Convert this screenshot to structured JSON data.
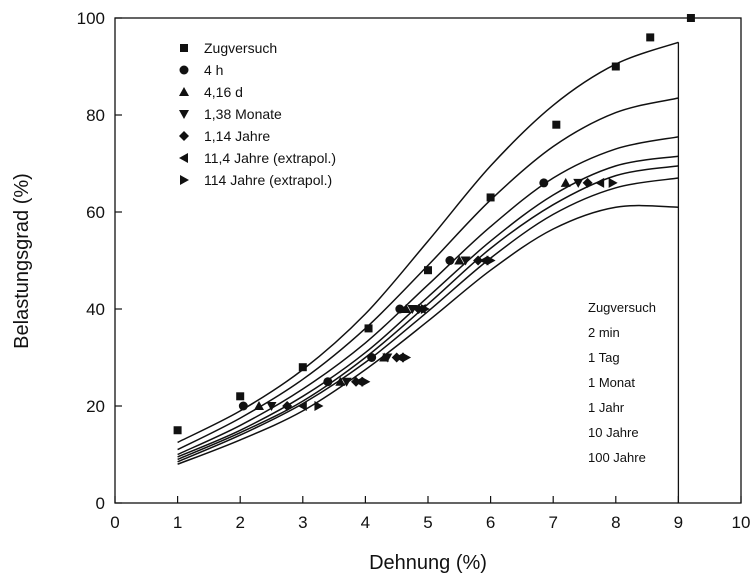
{
  "chart_data": {
    "type": "scatter",
    "xlabel": "Dehnung (%)",
    "ylabel": "Belastungsgrad (%)",
    "xlim": [
      0,
      10
    ],
    "ylim": [
      0,
      100
    ],
    "xticks": [
      0,
      1,
      2,
      3,
      4,
      5,
      6,
      7,
      8,
      9,
      10
    ],
    "yticks": [
      0,
      20,
      40,
      60,
      80,
      100
    ],
    "grid": false,
    "legend_position": "top-left",
    "series": [
      {
        "name": "Zugversuch",
        "marker": "square",
        "points": [
          [
            1.0,
            15
          ],
          [
            2.0,
            22
          ],
          [
            3.0,
            28
          ],
          [
            4.05,
            36
          ],
          [
            5.0,
            48
          ],
          [
            6.0,
            63
          ],
          [
            7.05,
            78
          ],
          [
            8.0,
            90
          ],
          [
            8.55,
            96
          ],
          [
            9.2,
            100
          ]
        ]
      },
      {
        "name": "4 h",
        "marker": "circle",
        "points": [
          [
            2.05,
            20
          ],
          [
            3.4,
            25
          ],
          [
            4.1,
            30
          ],
          [
            4.55,
            40
          ],
          [
            5.35,
            50
          ],
          [
            6.85,
            66
          ]
        ]
      },
      {
        "name": "4,16 d",
        "marker": "triangle-up",
        "points": [
          [
            2.3,
            20
          ],
          [
            3.6,
            25
          ],
          [
            4.3,
            30
          ],
          [
            4.65,
            40
          ],
          [
            5.5,
            50
          ],
          [
            7.2,
            66
          ]
        ]
      },
      {
        "name": "1,38 Monate",
        "marker": "triangle-down",
        "points": [
          [
            2.5,
            20
          ],
          [
            3.7,
            25
          ],
          [
            4.35,
            30
          ],
          [
            4.75,
            40
          ],
          [
            5.6,
            50
          ],
          [
            7.4,
            66
          ]
        ]
      },
      {
        "name": "1,14 Jahre",
        "marker": "diamond",
        "points": [
          [
            2.75,
            20
          ],
          [
            3.85,
            25
          ],
          [
            4.5,
            30
          ],
          [
            4.85,
            40
          ],
          [
            5.8,
            50
          ],
          [
            7.55,
            66
          ]
        ]
      },
      {
        "name": "11,4 Jahre (extrapol.)",
        "marker": "triangle-left",
        "points": [
          [
            3.0,
            20
          ],
          [
            3.9,
            25
          ],
          [
            4.55,
            30
          ],
          [
            4.9,
            40
          ],
          [
            5.9,
            50
          ],
          [
            7.75,
            66
          ]
        ]
      },
      {
        "name": "114 Jahre (extrapol.)",
        "marker": "triangle-right",
        "points": [
          [
            3.25,
            20
          ],
          [
            4.0,
            25
          ],
          [
            4.65,
            30
          ],
          [
            4.95,
            40
          ],
          [
            6.0,
            50
          ],
          [
            7.95,
            66
          ]
        ]
      }
    ],
    "curves": [
      {
        "name": "Zugversuch",
        "points": [
          [
            1,
            12.5
          ],
          [
            2,
            19
          ],
          [
            3,
            27.5
          ],
          [
            4,
            39
          ],
          [
            5,
            54
          ],
          [
            6,
            69.5
          ],
          [
            7,
            82
          ],
          [
            8,
            90.5
          ],
          [
            9,
            95
          ]
        ]
      },
      {
        "name": "2 min",
        "points": [
          [
            1,
            11
          ],
          [
            2,
            17.5
          ],
          [
            3,
            25.5
          ],
          [
            4,
            36
          ],
          [
            5,
            49
          ],
          [
            6,
            62.5
          ],
          [
            7,
            73.5
          ],
          [
            8,
            80.5
          ],
          [
            9,
            83.5
          ]
        ]
      },
      {
        "name": "1 Tag",
        "points": [
          [
            1,
            10
          ],
          [
            2,
            16
          ],
          [
            3,
            23.5
          ],
          [
            4,
            33
          ],
          [
            5,
            45
          ],
          [
            6,
            57
          ],
          [
            7,
            67
          ],
          [
            8,
            73
          ],
          [
            9,
            75.5
          ]
        ]
      },
      {
        "name": "1 Monat",
        "points": [
          [
            1,
            9.5
          ],
          [
            2,
            15
          ],
          [
            3,
            22
          ],
          [
            4,
            31
          ],
          [
            5,
            42.5
          ],
          [
            6,
            54
          ],
          [
            7,
            63.5
          ],
          [
            8,
            69.5
          ],
          [
            9,
            71.5
          ]
        ]
      },
      {
        "name": "1 Jahr",
        "points": [
          [
            1,
            9
          ],
          [
            2,
            14.5
          ],
          [
            3,
            21
          ],
          [
            4,
            30
          ],
          [
            5,
            41
          ],
          [
            6,
            52.5
          ],
          [
            7,
            61.5
          ],
          [
            8,
            67.5
          ],
          [
            9,
            69.5
          ]
        ]
      },
      {
        "name": "10 Jahre",
        "points": [
          [
            1,
            8.5
          ],
          [
            2,
            14
          ],
          [
            3,
            20.5
          ],
          [
            4,
            29
          ],
          [
            5,
            39.5
          ],
          [
            6,
            50.5
          ],
          [
            7,
            59.5
          ],
          [
            8,
            65
          ],
          [
            9,
            67
          ]
        ]
      },
      {
        "name": "100 Jahre",
        "points": [
          [
            1,
            8
          ],
          [
            2,
            13
          ],
          [
            3,
            19
          ],
          [
            4,
            27.5
          ],
          [
            5,
            37.5
          ],
          [
            6,
            48
          ],
          [
            7,
            56.5
          ],
          [
            8,
            61
          ],
          [
            9,
            61
          ]
        ]
      }
    ],
    "curve_labels": [
      "Zugversuch",
      "2 min",
      "1 Tag",
      "1 Monat",
      "1 Jahr",
      "10 Jahre",
      "100 Jahre"
    ]
  }
}
